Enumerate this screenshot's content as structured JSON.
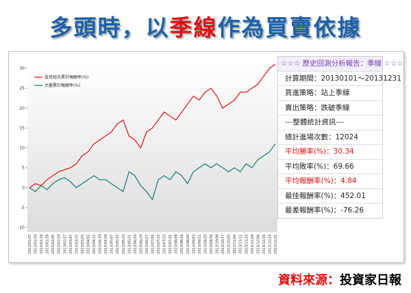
{
  "header": {
    "title": [
      "多頭時，以",
      "季線",
      "作為買賣依據"
    ]
  },
  "chart_data": {
    "type": "line",
    "categories": [
      "2013/01/02",
      "2013/01/10",
      "2013/01/18",
      "2013/01/28",
      "2013/02/05",
      "2013/02/19",
      "2013/02/27",
      "2013/03/07",
      "2013/03/15",
      "2013/03/25",
      "2013/04/02",
      "2013/04/11",
      "2013/04/19",
      "2013/04/29",
      "2013/05/07",
      "2013/05/15",
      "2013/05/23",
      "2013/05/31",
      "2013/06/10",
      "2013/06/19",
      "2013/06/27",
      "2013/07/05",
      "2013/07/15",
      "2013/07/23",
      "2013/07/31",
      "2013/08/08",
      "2013/08/16",
      "2013/08/26",
      "2013/09/03",
      "2013/09/11",
      "2013/09/20",
      "2013/09/30",
      "2013/10/08",
      "2013/10/17",
      "2013/10/25",
      "2013/11/04",
      "2013/11/12",
      "2013/11/20",
      "2013/11/28",
      "2013/12/06",
      "2013/12/16",
      "2013/12/24",
      "2013/12/31"
    ],
    "series": [
      {
        "name": "投資組合累計報酬率(%)",
        "color": "#e31a1c",
        "values": [
          0,
          1,
          0.5,
          2,
          3,
          4,
          4.5,
          5,
          6,
          8,
          9,
          11,
          12,
          13,
          14,
          16,
          17,
          13,
          12,
          10,
          14,
          15,
          17,
          19,
          18,
          17,
          19,
          21,
          23,
          22,
          24,
          25,
          23,
          20,
          21,
          22,
          24,
          24,
          25,
          26,
          28,
          30,
          31
        ]
      },
      {
        "name": "大盤累計報酬率(%)",
        "color": "#1f7f7a",
        "values": [
          0,
          -1,
          0.5,
          -0.5,
          1,
          2,
          2.5,
          1.5,
          0,
          1,
          2,
          3,
          2,
          2,
          1,
          0,
          -1,
          4,
          3,
          0.5,
          -1,
          -3,
          2,
          3,
          2,
          4,
          3,
          1,
          4,
          5,
          6,
          5,
          6,
          5,
          4,
          5,
          4,
          6,
          5,
          7,
          8,
          9,
          11
        ]
      }
    ],
    "ylim": [
      -10,
      30
    ],
    "yticks": [
      -10,
      -5,
      0,
      5,
      10,
      15,
      20,
      25,
      30
    ]
  },
  "panel": [
    "☆☆☆ 歷史回測分析報告：季線 ☆☆☆",
    "計算期間：20130101～20131231",
    "買進策略：站上季線",
    "賣出策略：跌破季線",
    "---整體統計資訊---",
    "總計進場次數：12024",
    "平均勝率(%)：30.34",
    "平均敗率(%)：69.66",
    "平均報酬率(%)：4.84",
    "最佳報酬率(%)：452.01",
    "最差報酬率(%)：-76.26"
  ],
  "source": [
    "資料來源：",
    "投資家日報"
  ]
}
